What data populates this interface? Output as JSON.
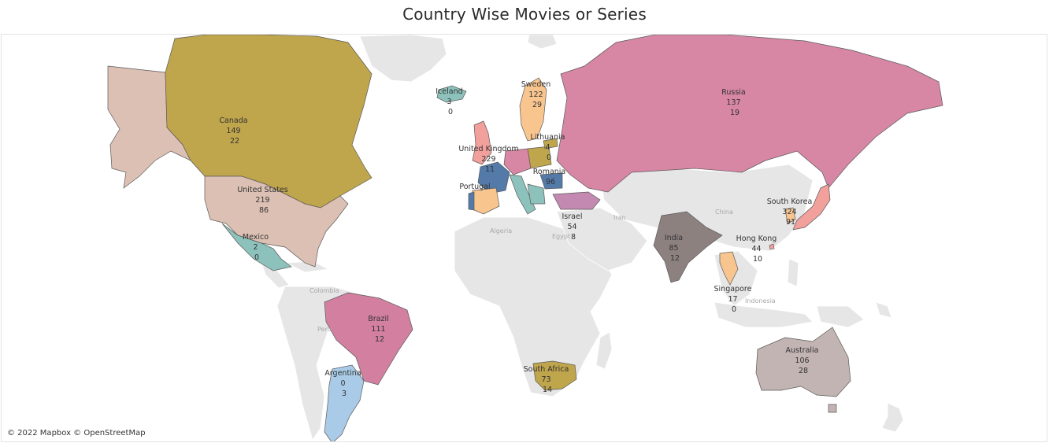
{
  "title": "Country Wise Movies or Series",
  "attribution": "© 2022 Mapbox © OpenStreetMap",
  "background_labels": [
    "Iran",
    "China",
    "Algeria",
    "Egypt",
    "Colombia",
    "Peru",
    "Indonesia"
  ],
  "countries": [
    {
      "name": "Iceland",
      "v1": "3",
      "v2": "0",
      "color": "#8cc2bb"
    },
    {
      "name": "Sweden",
      "v1": "122",
      "v2": "29",
      "color": "#f9c58f"
    },
    {
      "name": "Russia",
      "v1": "137",
      "v2": "19",
      "color": "#d786a4"
    },
    {
      "name": "Canada",
      "v1": "149",
      "v2": "22",
      "color": "#bfa54b"
    },
    {
      "name": "Lithuania",
      "v1": "4",
      "v2": "0",
      "color": "#bfa54b"
    },
    {
      "name": "United Kingdom",
      "v1": "229",
      "v2": "11",
      "color": "#f2a09c"
    },
    {
      "name": "Romania",
      "v1": "96",
      "v2": "",
      "color": "#537aa8"
    },
    {
      "name": "Portugal",
      "v1": "",
      "v2": "",
      "color": "#537aa8"
    },
    {
      "name": "United States",
      "v1": "219",
      "v2": "86",
      "color": "#dcc0b3"
    },
    {
      "name": "South Korea",
      "v1": "324",
      "v2": "91",
      "color": "#f9c58f"
    },
    {
      "name": "Israel",
      "v1": "54",
      "v2": "8",
      "color": "#c489b0"
    },
    {
      "name": "Mexico",
      "v1": "2",
      "v2": "0",
      "color": "#8cc2bb"
    },
    {
      "name": "India",
      "v1": "85",
      "v2": "12",
      "color": "#8d8180"
    },
    {
      "name": "Hong Kong",
      "v1": "44",
      "v2": "10",
      "color": "#f2a09c"
    },
    {
      "name": "Singapore",
      "v1": "17",
      "v2": "0",
      "color": "#f9c58f"
    },
    {
      "name": "Brazil",
      "v1": "111",
      "v2": "12",
      "color": "#d27fa0"
    },
    {
      "name": "Argentina",
      "v1": "0",
      "v2": "3",
      "color": "#a9cbe8"
    },
    {
      "name": "South Africa",
      "v1": "73",
      "v2": "14",
      "color": "#bfa54b"
    },
    {
      "name": "Australia",
      "v1": "106",
      "v2": "28",
      "color": "#c2b4b2"
    }
  ]
}
